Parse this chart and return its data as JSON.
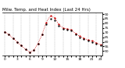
{
  "title": "Milw. Temp. and Heat Index (Last 24 Hrs)",
  "line1_color": "#000000",
  "line2_color": "#cc0000",
  "background_color": "#ffffff",
  "grid_color": "#aaaaaa",
  "x_values": [
    0,
    1,
    2,
    3,
    4,
    5,
    6,
    7,
    8,
    9,
    10,
    11,
    12,
    13,
    14,
    15,
    16,
    17,
    18,
    19,
    20,
    21,
    22,
    23
  ],
  "temp_values": [
    71,
    68,
    64,
    60,
    56,
    52,
    49,
    51,
    58,
    68,
    79,
    85,
    83,
    77,
    74,
    73,
    72,
    68,
    65,
    63,
    61,
    60,
    58,
    56
  ],
  "heat_values": [
    71,
    68,
    64,
    60,
    56,
    52,
    49,
    51,
    58,
    68,
    81,
    88,
    86,
    79,
    75,
    74,
    73,
    69,
    66,
    64,
    62,
    61,
    59,
    57
  ],
  "ylim": [
    45,
    92
  ],
  "xlim": [
    -0.5,
    23.5
  ],
  "yticks": [
    50,
    55,
    60,
    65,
    70,
    75,
    80,
    85,
    90
  ],
  "xticks": [
    0,
    1,
    2,
    3,
    4,
    5,
    6,
    7,
    8,
    9,
    10,
    11,
    12,
    13,
    14,
    15,
    16,
    17,
    18,
    19,
    20,
    21,
    22,
    23
  ],
  "xlabel_every": [
    0,
    3,
    6,
    9,
    12,
    15,
    18,
    21,
    23
  ],
  "title_fontsize": 4.0,
  "tick_fontsize": 3.2,
  "markersize": 1.3,
  "linewidth_dot": 0.6
}
